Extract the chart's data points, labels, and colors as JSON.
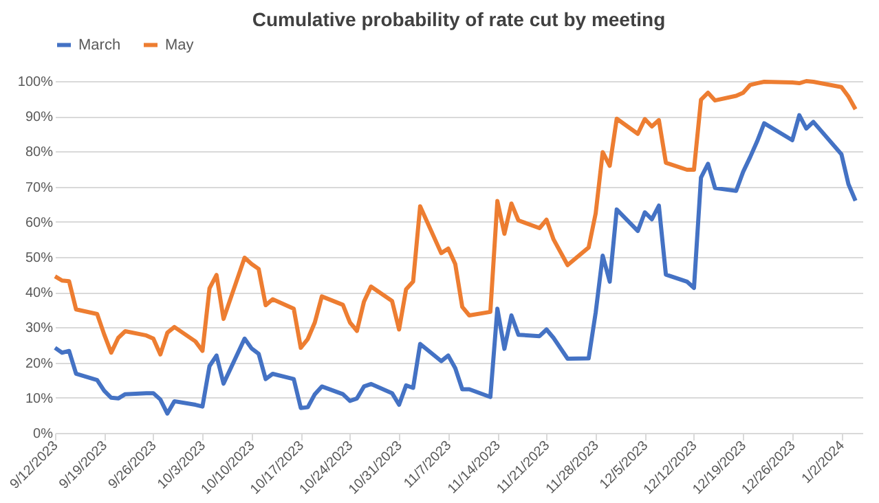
{
  "chart_data": {
    "type": "line",
    "title": "Cumulative probability of rate cut by meeting",
    "x": [
      "2023-09-12",
      "2023-09-13",
      "2023-09-14",
      "2023-09-15",
      "2023-09-18",
      "2023-09-19",
      "2023-09-20",
      "2023-09-21",
      "2023-09-22",
      "2023-09-25",
      "2023-09-26",
      "2023-09-27",
      "2023-09-28",
      "2023-09-29",
      "2023-10-02",
      "2023-10-03",
      "2023-10-04",
      "2023-10-05",
      "2023-10-06",
      "2023-10-09",
      "2023-10-10",
      "2023-10-11",
      "2023-10-12",
      "2023-10-13",
      "2023-10-16",
      "2023-10-17",
      "2023-10-18",
      "2023-10-19",
      "2023-10-20",
      "2023-10-23",
      "2023-10-24",
      "2023-10-25",
      "2023-10-26",
      "2023-10-27",
      "2023-10-30",
      "2023-10-31",
      "2023-11-01",
      "2023-11-02",
      "2023-11-03",
      "2023-11-06",
      "2023-11-07",
      "2023-11-08",
      "2023-11-09",
      "2023-11-10",
      "2023-11-13",
      "2023-11-14",
      "2023-11-15",
      "2023-11-16",
      "2023-11-17",
      "2023-11-20",
      "2023-11-21",
      "2023-11-22",
      "2023-11-24",
      "2023-11-27",
      "2023-11-28",
      "2023-11-29",
      "2023-11-30",
      "2023-12-01",
      "2023-12-04",
      "2023-12-05",
      "2023-12-06",
      "2023-12-07",
      "2023-12-08",
      "2023-12-11",
      "2023-12-12",
      "2023-12-13",
      "2023-12-14",
      "2023-12-15",
      "2023-12-18",
      "2023-12-19",
      "2023-12-20",
      "2023-12-21",
      "2023-12-22",
      "2023-12-26",
      "2023-12-27",
      "2023-12-28",
      "2023-12-29",
      "2024-01-02",
      "2024-01-03",
      "2024-01-04"
    ],
    "series": [
      {
        "name": "March",
        "color": "#4472c4",
        "values": [
          24.2,
          22.8,
          23.3,
          16.8,
          15.0,
          12,
          10,
          9.8,
          11,
          11.3,
          11.3,
          9.5,
          5.5,
          9,
          8,
          7.5,
          19,
          22,
          14,
          26.8,
          24,
          22.5,
          15.3,
          16.8,
          15.3,
          7.1,
          7.3,
          11,
          13.2,
          11,
          9.1,
          9.8,
          13.2,
          13.9,
          11.3,
          8,
          13.5,
          12.8,
          25.3,
          20.4,
          22,
          18.4,
          12.4,
          12.4,
          10.2,
          35.3,
          23.9,
          33.4,
          27.9,
          27.5,
          29.4,
          27,
          21.1,
          21.2,
          34.2,
          50.4,
          43,
          63.5,
          57.4,
          62.7,
          60.7,
          64.6,
          45,
          43,
          41.2,
          72.6,
          76.5,
          69.6,
          68.8,
          74.2,
          78.4,
          82.9,
          88,
          83.2,
          90.3,
          86.5,
          88.4,
          79.2,
          70.7,
          66
        ]
      },
      {
        "name": "May",
        "color": "#ed7d31",
        "values": [
          44.5,
          43.3,
          43.1,
          35.1,
          33.8,
          28,
          22.8,
          27,
          28.9,
          27.7,
          26.8,
          22.3,
          28.5,
          30.1,
          26,
          23.3,
          41.1,
          44.9,
          32.4,
          49.8,
          48,
          46.6,
          36.3,
          38,
          35.3,
          24.2,
          26.7,
          31.4,
          38.8,
          36.4,
          31.4,
          29,
          37.3,
          41.6,
          37.5,
          29.4,
          40.8,
          43,
          64.4,
          51.1,
          52.4,
          48,
          35.8,
          33.4,
          34.4,
          65.9,
          56.6,
          65.2,
          60.4,
          58.2,
          60.6,
          55,
          47.7,
          52.7,
          62.4,
          79.8,
          75.9,
          89.3,
          85,
          89.2,
          87.1,
          88.9,
          76.8,
          74.8,
          74.8,
          94.7,
          96.7,
          94.5,
          95.8,
          96.7,
          98.9,
          99.4,
          99.8,
          99.6,
          99.4,
          100,
          99.8,
          98.3,
          95.6,
          92
        ]
      }
    ],
    "xlim": [
      "2023-09-12",
      "2024-01-05"
    ],
    "xticks": [
      {
        "value": "2023-09-12",
        "label": "9/12/2023"
      },
      {
        "value": "2023-09-19",
        "label": "9/19/2023"
      },
      {
        "value": "2023-09-26",
        "label": "9/26/2023"
      },
      {
        "value": "2023-10-03",
        "label": "10/3/2023"
      },
      {
        "value": "2023-10-10",
        "label": "10/10/2023"
      },
      {
        "value": "2023-10-17",
        "label": "10/17/2023"
      },
      {
        "value": "2023-10-24",
        "label": "10/24/2023"
      },
      {
        "value": "2023-10-31",
        "label": "10/31/2023"
      },
      {
        "value": "2023-11-07",
        "label": "11/7/2023"
      },
      {
        "value": "2023-11-14",
        "label": "11/14/2023"
      },
      {
        "value": "2023-11-21",
        "label": "11/21/2023"
      },
      {
        "value": "2023-11-28",
        "label": "11/28/2023"
      },
      {
        "value": "2023-12-05",
        "label": "12/5/2023"
      },
      {
        "value": "2023-12-12",
        "label": "12/12/2023"
      },
      {
        "value": "2023-12-19",
        "label": "12/19/2023"
      },
      {
        "value": "2023-12-26",
        "label": "12/26/2023"
      },
      {
        "value": "2024-01-02",
        "label": "1/2/2024"
      }
    ],
    "ylim": [
      0,
      100
    ],
    "yticks": [
      {
        "value": 0,
        "label": "0%"
      },
      {
        "value": 10,
        "label": "10%"
      },
      {
        "value": 20,
        "label": "20%"
      },
      {
        "value": 30,
        "label": "30%"
      },
      {
        "value": 40,
        "label": "40%"
      },
      {
        "value": 50,
        "label": "50%"
      },
      {
        "value": 60,
        "label": "60%"
      },
      {
        "value": 70,
        "label": "70%"
      },
      {
        "value": 80,
        "label": "80%"
      },
      {
        "value": 90,
        "label": "90%"
      },
      {
        "value": 100,
        "label": "100%"
      }
    ],
    "grid": "y",
    "legend": "top",
    "marker": "none",
    "line_style": "solid"
  }
}
